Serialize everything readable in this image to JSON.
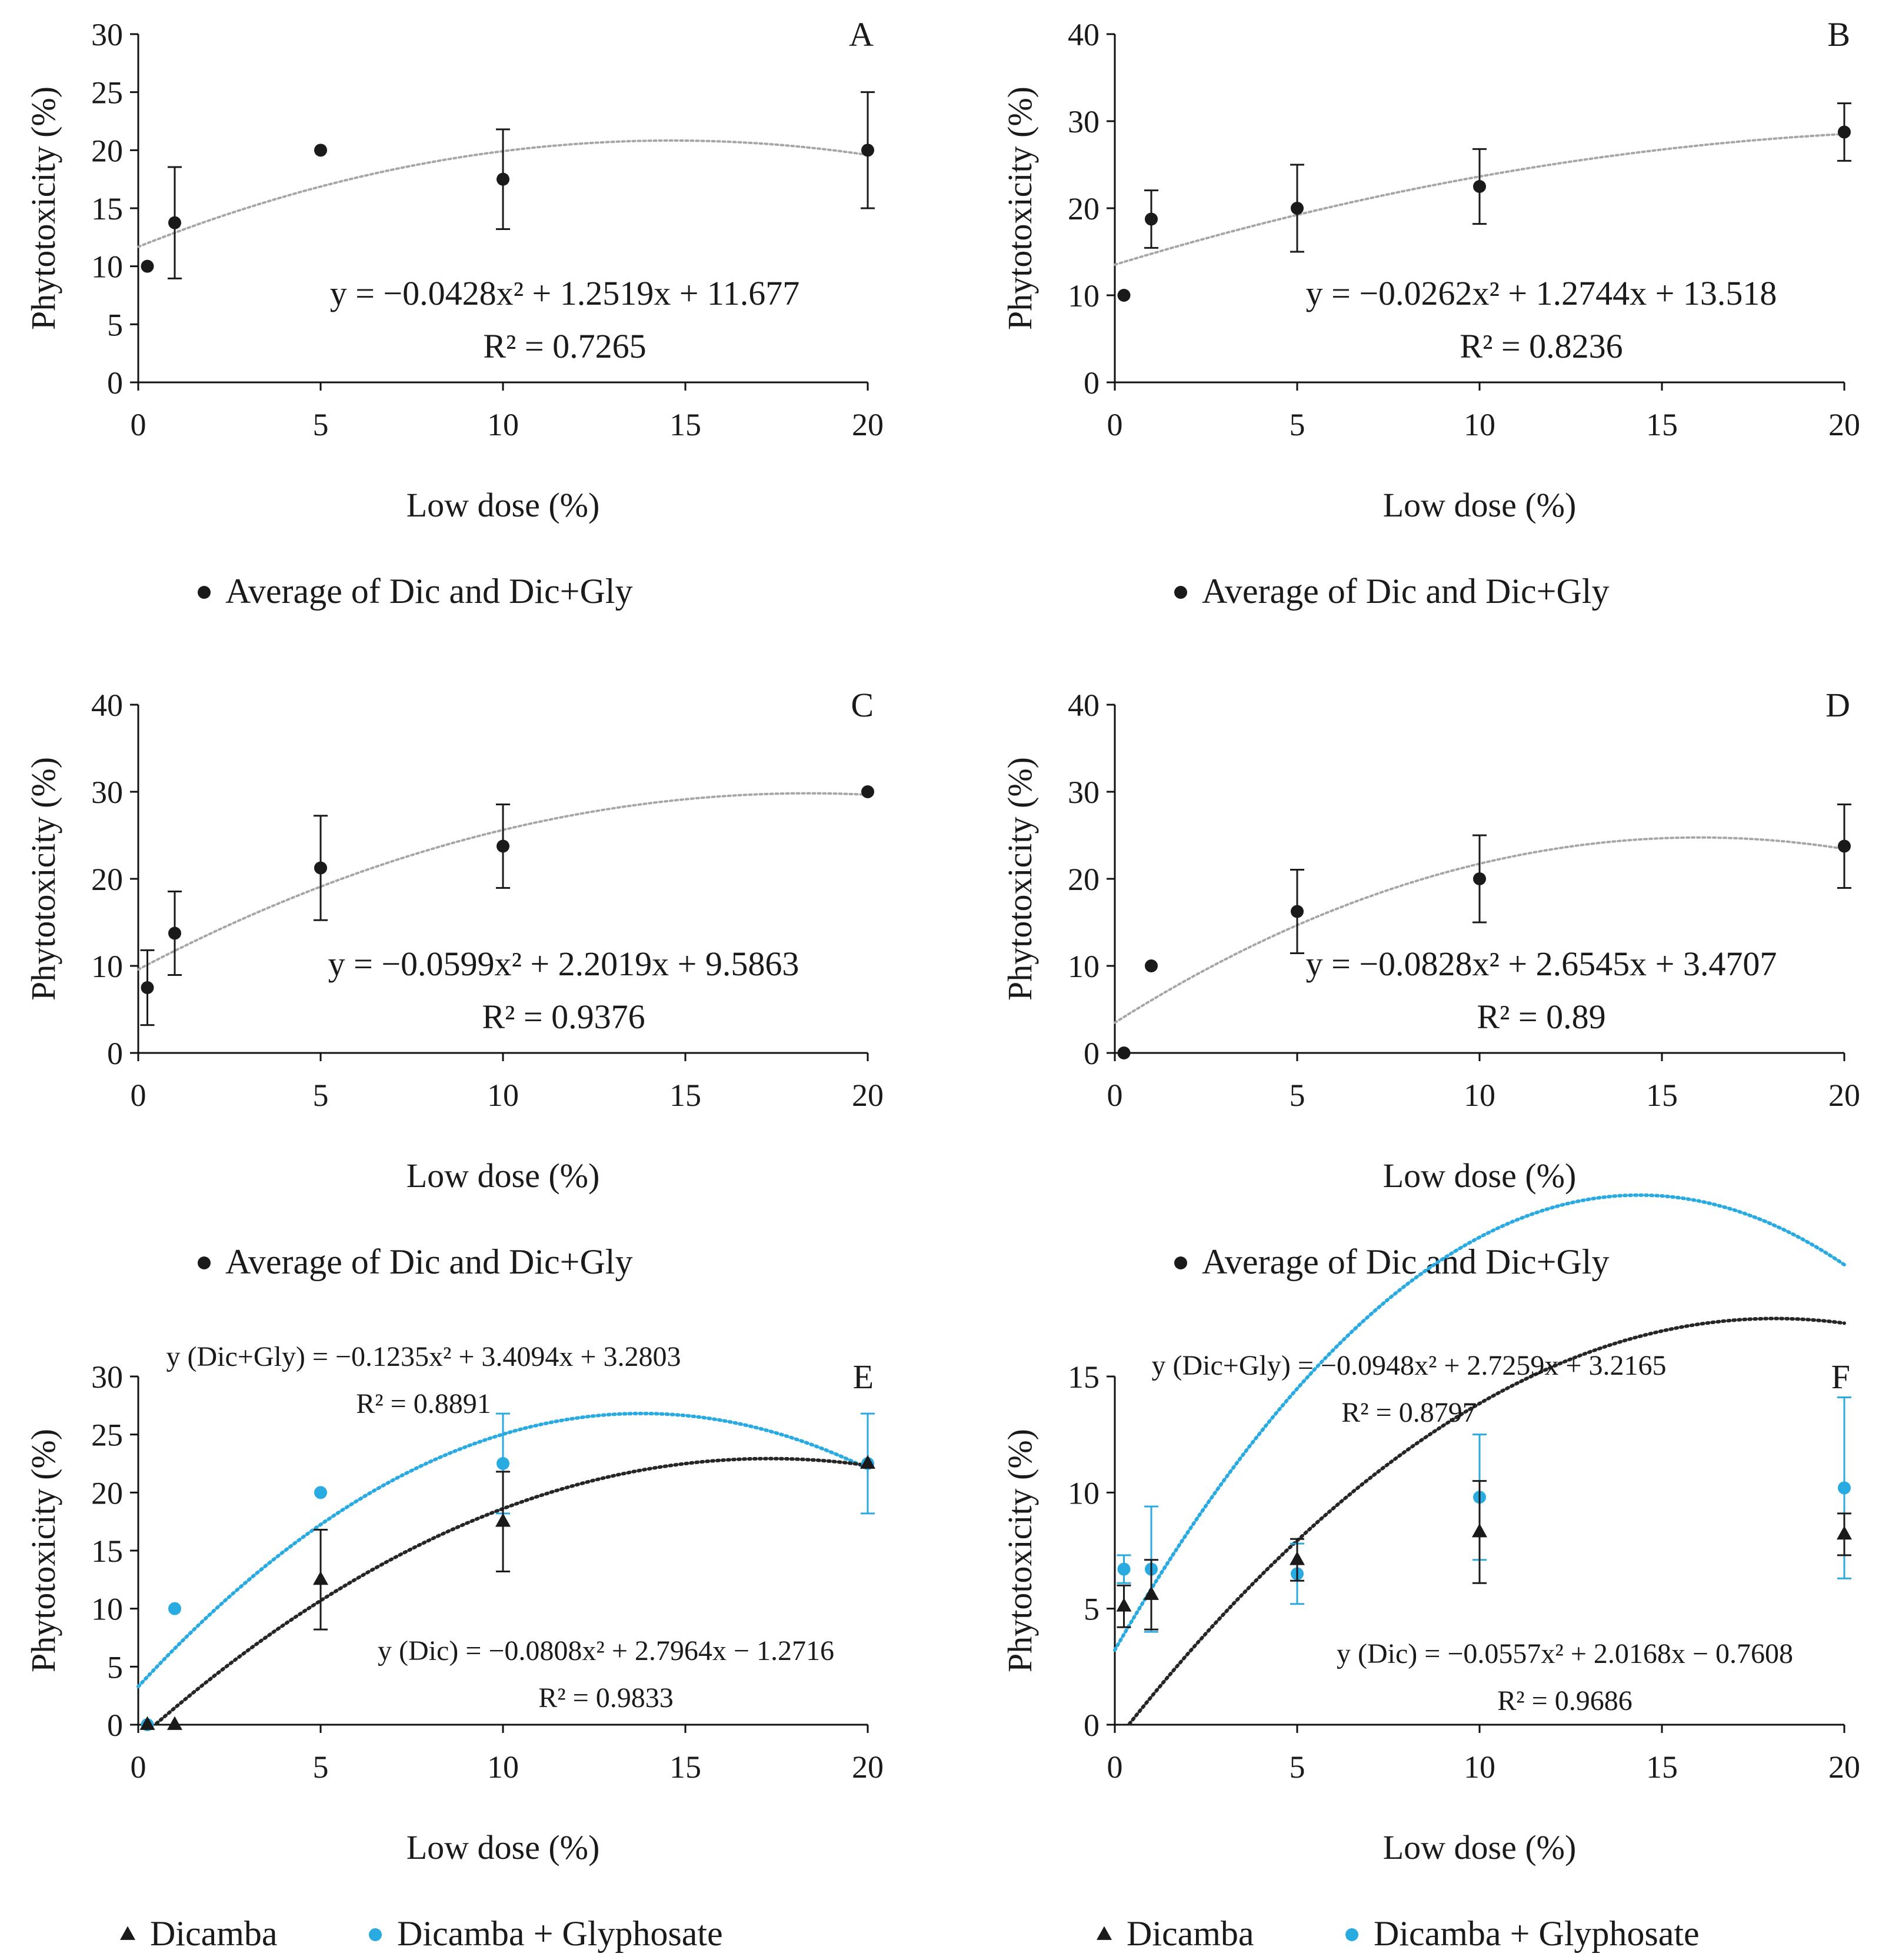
{
  "colors": {
    "black": "#1a1a1a",
    "blue": "#29abe2",
    "gray_trend": "#a6a6a6",
    "black_trend": "#262626"
  },
  "chart_data": [
    {
      "type": "scatter",
      "panel": "A",
      "xlabel": "Low dose (%)",
      "ylabel": "Phytotoxicity (%)",
      "xlim": [
        0,
        20
      ],
      "ylim": [
        0,
        30
      ],
      "xticks": [
        0,
        5,
        10,
        15,
        20
      ],
      "yticks": [
        0,
        5,
        10,
        15,
        20,
        25,
        30
      ],
      "series": [
        {
          "name": "Average of Dic and Dic+Gly",
          "marker": "circle",
          "color": "#1a1a1a",
          "x": [
            0.25,
            1,
            5,
            10,
            20
          ],
          "y": [
            10,
            13.75,
            20,
            17.5,
            20
          ],
          "err": [
            0,
            4.8,
            0,
            4.3,
            5
          ],
          "trend": {
            "a": -0.0428,
            "b": 1.2519,
            "c": 11.677,
            "color": "#a6a6a6"
          },
          "equation": "y = −0.0428x² + 1.2519x + 11.677",
          "r2": "R² = 0.7265"
        }
      ],
      "legend_position": "bottom"
    },
    {
      "type": "scatter",
      "panel": "B",
      "xlabel": "Low dose (%)",
      "ylabel": "Phytotoxicity (%)",
      "xlim": [
        0,
        20
      ],
      "ylim": [
        0,
        40
      ],
      "xticks": [
        0,
        5,
        10,
        15,
        20
      ],
      "yticks": [
        0,
        10,
        20,
        30,
        40
      ],
      "series": [
        {
          "name": "Average of Dic and Dic+Gly",
          "marker": "circle",
          "color": "#1a1a1a",
          "x": [
            0.25,
            1,
            5,
            10,
            20
          ],
          "y": [
            10,
            18.75,
            20,
            22.5,
            28.75
          ],
          "err": [
            0,
            3.3,
            5,
            4.3,
            3.3
          ],
          "trend": {
            "a": -0.0262,
            "b": 1.2744,
            "c": 13.518,
            "color": "#a6a6a6"
          },
          "equation": "y = −0.0262x² + 1.2744x + 13.518",
          "r2": "R² = 0.8236"
        }
      ],
      "legend_position": "bottom"
    },
    {
      "type": "scatter",
      "panel": "C",
      "xlabel": "Low dose (%)",
      "ylabel": "Phytotoxicity (%)",
      "xlim": [
        0,
        20
      ],
      "ylim": [
        0,
        40
      ],
      "xticks": [
        0,
        5,
        10,
        15,
        20
      ],
      "yticks": [
        0,
        10,
        20,
        30,
        40
      ],
      "series": [
        {
          "name": "Average of Dic and Dic+Gly",
          "marker": "circle",
          "color": "#1a1a1a",
          "x": [
            0.25,
            1,
            5,
            10,
            20
          ],
          "y": [
            7.5,
            13.75,
            21.25,
            23.75,
            30
          ],
          "err": [
            4.3,
            4.8,
            6,
            4.8,
            0
          ],
          "trend": {
            "a": -0.0599,
            "b": 2.2019,
            "c": 9.5863,
            "color": "#a6a6a6"
          },
          "equation": "y = −0.0599x² + 2.2019x + 9.5863",
          "r2": "R² = 0.9376"
        }
      ],
      "legend_position": "bottom"
    },
    {
      "type": "scatter",
      "panel": "D",
      "xlabel": "Low dose (%)",
      "ylabel": "Phytotoxicity (%)",
      "xlim": [
        0,
        20
      ],
      "ylim": [
        0,
        40
      ],
      "xticks": [
        0,
        5,
        10,
        15,
        20
      ],
      "yticks": [
        0,
        10,
        20,
        30,
        40
      ],
      "series": [
        {
          "name": "Average of Dic and Dic+Gly",
          "marker": "circle",
          "color": "#1a1a1a",
          "x": [
            0.25,
            1,
            5,
            10,
            20
          ],
          "y": [
            0,
            10,
            16.25,
            20,
            23.75
          ],
          "err": [
            0,
            0,
            4.8,
            5,
            4.8
          ],
          "trend": {
            "a": -0.0828,
            "b": 2.6545,
            "c": 3.4707,
            "color": "#a6a6a6"
          },
          "equation": "y = −0.0828x² + 2.6545x + 3.4707",
          "r2": "R² = 0.89"
        }
      ],
      "legend_position": "bottom"
    },
    {
      "type": "scatter",
      "panel": "E",
      "xlabel": "Low dose (%)",
      "ylabel": "Phytotoxicity (%)",
      "xlim": [
        0,
        20
      ],
      "ylim": [
        0,
        30
      ],
      "xticks": [
        0,
        5,
        10,
        15,
        20
      ],
      "yticks": [
        0,
        5,
        10,
        15,
        20,
        25,
        30
      ],
      "series": [
        {
          "name": "Dicamba + Glyphosate",
          "marker": "circle",
          "color": "#29abe2",
          "x": [
            0.25,
            1,
            5,
            10,
            20
          ],
          "y": [
            0,
            10,
            20,
            22.5,
            22.5
          ],
          "err": [
            0,
            0,
            0,
            4.3,
            4.3
          ],
          "trend": {
            "a": -0.1235,
            "b": 3.4094,
            "c": 3.2803,
            "color": "#29abe2"
          },
          "equation": "y (Dic+Gly) = −0.1235x² + 3.4094x + 3.2803",
          "r2": "R² = 0.8891"
        },
        {
          "name": "Dicamba",
          "marker": "triangle",
          "color": "#1a1a1a",
          "x": [
            0.25,
            1,
            5,
            10,
            20
          ],
          "y": [
            0,
            0,
            12.5,
            17.5,
            22.5
          ],
          "err": [
            0,
            0,
            4.3,
            4.3,
            0
          ],
          "trend": {
            "a": -0.0808,
            "b": 2.7964,
            "c": -1.2716,
            "color": "#262626"
          },
          "equation": "y (Dic) = −0.0808x² + 2.7964x − 1.2716",
          "r2": "R² = 0.9833"
        }
      ],
      "legend_position": "bottom"
    },
    {
      "type": "scatter",
      "panel": "F",
      "xlabel": "Low dose (%)",
      "ylabel": "Phytotoxicity (%)",
      "xlim": [
        0,
        20
      ],
      "ylim": [
        0,
        15
      ],
      "xticks": [
        0,
        5,
        10,
        15,
        20
      ],
      "yticks": [
        0,
        5,
        10,
        15
      ],
      "series": [
        {
          "name": "Dicamba + Glyphosate",
          "marker": "circle",
          "color": "#29abe2",
          "x": [
            0.25,
            1,
            5,
            10,
            20
          ],
          "y": [
            6.7,
            6.7,
            6.5,
            9.8,
            10.2
          ],
          "err": [
            0.6,
            2.7,
            1.3,
            2.7,
            3.9
          ],
          "trend": {
            "a": -0.0948,
            "b": 2.7259,
            "c": 3.2165,
            "color": "#29abe2"
          },
          "equation": "y (Dic+Gly) = −0.0948x² + 2.7259x + 3.2165",
          "r2": "R² = 0.8797"
        },
        {
          "name": "Dicamba",
          "marker": "triangle",
          "color": "#1a1a1a",
          "x": [
            0.25,
            1,
            5,
            10,
            20
          ],
          "y": [
            5.1,
            5.6,
            7.1,
            8.3,
            8.2
          ],
          "err": [
            0.9,
            1.5,
            0.9,
            2.2,
            0.9
          ],
          "trend": {
            "a": -0.0557,
            "b": 2.0168,
            "c": -0.7608,
            "color": "#262626"
          },
          "equation": "y (Dic) = −0.0557x² + 2.0168x − 0.7608",
          "r2": "R² = 0.9686"
        }
      ],
      "legend_position": "bottom"
    }
  ]
}
